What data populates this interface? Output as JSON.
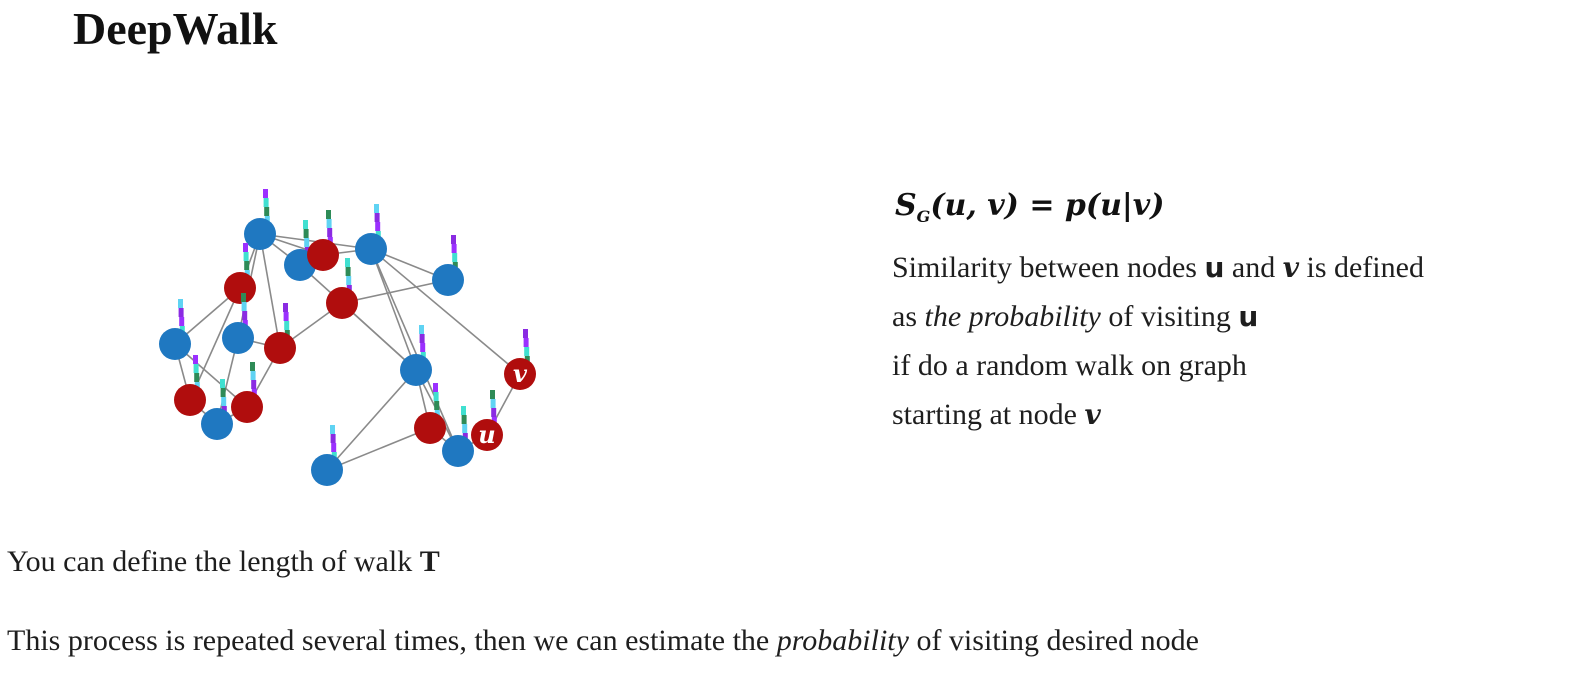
{
  "title": "DeepWalk",
  "formula": {
    "lhs_main": "S",
    "lhs_sub": "G",
    "lhs_args": "(u, v)",
    "equals": " = ",
    "rhs": "p(u|v)"
  },
  "description": {
    "line1_a": "Similarity between nodes ",
    "var_u": "u",
    "line1_b": " and ",
    "var_v": "v",
    "line1_c": " is defined",
    "line2_a": "as ",
    "line2_em": "the probability",
    "line2_b": " of  visiting ",
    "line3": "if  do a random walk on graph",
    "line4": "starting at node "
  },
  "notes": {
    "walk_length_text": "You can define the length of walk ",
    "walk_length_var": "T",
    "repeat_a": "This process is repeated several times, then we can estimate the ",
    "repeat_em": "probability",
    "repeat_b": " of  visiting desired node"
  },
  "graph": {
    "label_u": "u",
    "label_v": "v",
    "colors": {
      "blue_node": "#1f78c1",
      "red_node": "#b00d0d",
      "edge": "#8a8a8a"
    }
  }
}
